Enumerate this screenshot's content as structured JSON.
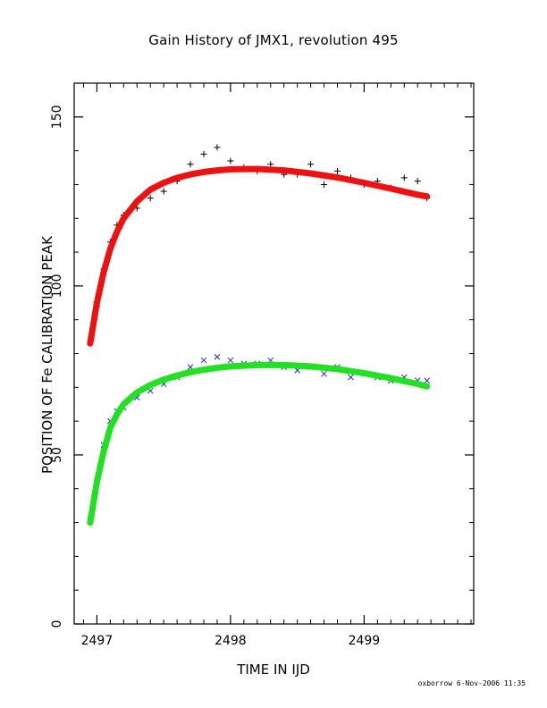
{
  "chart_data": {
    "type": "scatter",
    "title": "Gain History of JMX1, revolution 495",
    "xlabel": "TIME IN IJD",
    "ylabel": "POSITION OF Fe CALIBRATION PEAK",
    "footer": "oxborrow   6-Nov-2006 11:35",
    "xlim": [
      2496.83,
      2499.82
    ],
    "ylim": [
      0,
      160
    ],
    "x_ticks": [
      2497,
      2498,
      2499
    ],
    "y_ticks": [
      0,
      50,
      100,
      150
    ],
    "grid": false,
    "legend": "none",
    "series": [
      {
        "marker": "plus",
        "color": "#000000",
        "x": [
          2496.95,
          2497.0,
          2497.05,
          2497.1,
          2497.15,
          2497.2,
          2497.3,
          2497.4,
          2497.5,
          2497.6,
          2497.7,
          2497.8,
          2497.9,
          2498.0,
          2498.1,
          2498.2,
          2498.3,
          2498.4,
          2498.5,
          2498.6,
          2498.7,
          2498.8,
          2498.9,
          2499.0,
          2499.1,
          2499.2,
          2499.3,
          2499.4,
          2499.47
        ],
        "y": [
          83,
          94,
          105,
          113,
          118,
          121,
          123,
          126,
          128,
          131,
          136,
          139,
          141,
          137,
          135,
          134,
          136,
          133,
          133,
          136,
          130,
          134,
          132,
          130,
          131,
          129,
          132,
          131,
          126
        ]
      },
      {
        "marker": "cross",
        "color": "#1f2fd0",
        "x": [
          2496.95,
          2497.0,
          2497.05,
          2497.1,
          2497.15,
          2497.2,
          2497.3,
          2497.4,
          2497.5,
          2497.6,
          2497.7,
          2497.8,
          2497.9,
          2498.0,
          2498.1,
          2498.2,
          2498.3,
          2498.4,
          2498.5,
          2498.6,
          2498.7,
          2498.8,
          2498.9,
          2499.0,
          2499.1,
          2499.2,
          2499.3,
          2499.4,
          2499.47
        ],
        "y": [
          31,
          42,
          53,
          60,
          63,
          64,
          67,
          69,
          71,
          73,
          76,
          78,
          79,
          78,
          77,
          77,
          78,
          76,
          75,
          76,
          74,
          76,
          73,
          74,
          73,
          72,
          73,
          72,
          72
        ]
      },
      {
        "type": "line",
        "color": "#ee1111",
        "x": [
          2496.95,
          2497.0,
          2497.05,
          2497.1,
          2497.15,
          2497.2,
          2497.3,
          2497.4,
          2497.5,
          2497.6,
          2497.7,
          2497.8,
          2497.9,
          2498.0,
          2498.2,
          2498.4,
          2498.6,
          2498.8,
          2499.0,
          2499.2,
          2499.4,
          2499.47
        ],
        "y": [
          83,
          95,
          104,
          111,
          116,
          120,
          125,
          128.5,
          130.5,
          132,
          133,
          133.7,
          134.2,
          134.5,
          134.6,
          134.2,
          133.3,
          132.1,
          130.5,
          128.8,
          127,
          126.5
        ]
      },
      {
        "type": "line",
        "color": "#22e022",
        "x": [
          2496.95,
          2497.0,
          2497.05,
          2497.1,
          2497.15,
          2497.2,
          2497.3,
          2497.4,
          2497.5,
          2497.6,
          2497.7,
          2497.8,
          2497.9,
          2498.0,
          2498.2,
          2498.4,
          2498.6,
          2498.8,
          2499.0,
          2499.2,
          2499.4,
          2499.47
        ],
        "y": [
          30,
          42,
          51,
          58,
          62,
          65,
          68.5,
          70.7,
          72.3,
          73.5,
          74.5,
          75.2,
          75.8,
          76.2,
          76.6,
          76.6,
          76.2,
          75.4,
          74.2,
          72.7,
          71,
          70.3
        ]
      }
    ]
  }
}
